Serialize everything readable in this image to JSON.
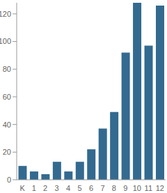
{
  "chart_data": {
    "type": "bar",
    "categories": [
      "K",
      "1",
      "2",
      "3",
      "4",
      "5",
      "6",
      "7",
      "8",
      "9",
      "10",
      "11",
      "12"
    ],
    "values": [
      10,
      6,
      4,
      13,
      6,
      13,
      22,
      37,
      49,
      92,
      128,
      97,
      126
    ],
    "color": "#336a90",
    "ylim": [
      0,
      128
    ],
    "yticks": [
      0,
      20,
      40,
      60,
      80,
      100,
      120
    ],
    "grid": false
  }
}
